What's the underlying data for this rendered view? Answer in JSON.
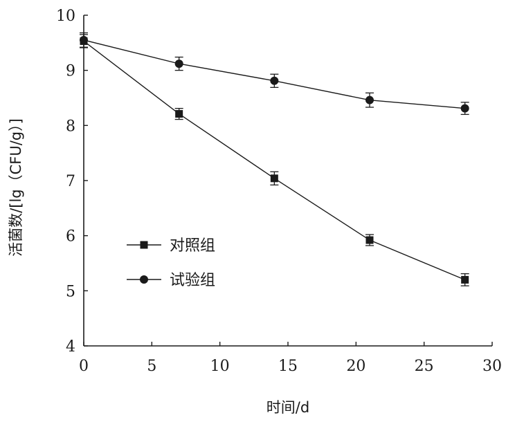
{
  "chart_data": {
    "type": "line",
    "title": "",
    "xlabel": "时间/d",
    "ylabel": "活菌数/[lg（CFU/g）]",
    "xlim": [
      0,
      30
    ],
    "ylim": [
      4,
      10
    ],
    "xticks": [
      0,
      5,
      10,
      15,
      20,
      25,
      30
    ],
    "yticks": [
      4,
      5,
      6,
      7,
      8,
      9,
      10
    ],
    "grid": false,
    "legend_position": "lower-left",
    "series": [
      {
        "name": "对照组",
        "marker": "square",
        "x": [
          0,
          7,
          14,
          21,
          28
        ],
        "y": [
          9.53,
          8.21,
          7.04,
          5.92,
          5.2
        ],
        "error": [
          0.12,
          0.1,
          0.12,
          0.1,
          0.11
        ]
      },
      {
        "name": "试验组",
        "marker": "circle",
        "x": [
          0,
          7,
          14,
          21,
          28
        ],
        "y": [
          9.55,
          9.12,
          8.81,
          8.46,
          8.31
        ],
        "error": [
          0.13,
          0.12,
          0.12,
          0.13,
          0.11
        ]
      }
    ]
  }
}
